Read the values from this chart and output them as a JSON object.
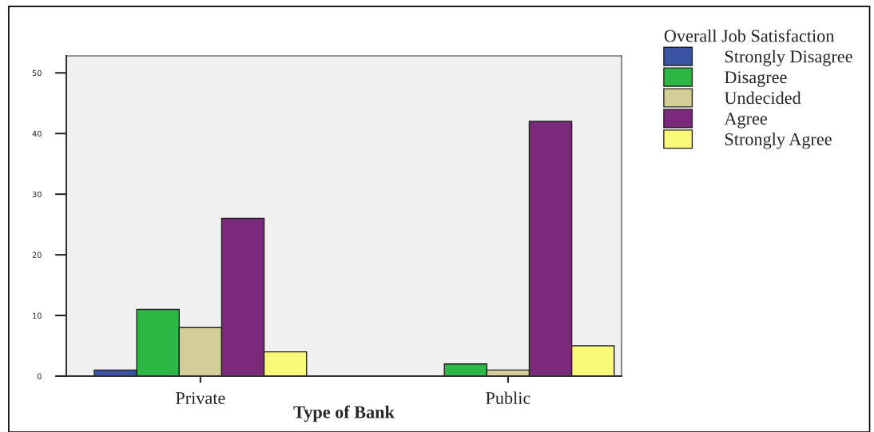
{
  "chart_data": {
    "type": "bar",
    "categories": [
      "Private",
      "Public"
    ],
    "xlabel": "Type of Bank",
    "legend_title": "Overall Job Satisfaction",
    "legend": "top right",
    "series": [
      {
        "name": "Strongly Disagree",
        "color": "#3a53a4",
        "values": [
          1,
          null
        ]
      },
      {
        "name": "Disagree",
        "color": "#2db744",
        "values": [
          11,
          2
        ]
      },
      {
        "name": "Undecided",
        "color": "#d3ce97",
        "values": [
          8,
          1
        ]
      },
      {
        "name": "Agree",
        "color": "#7b2a7b",
        "values": [
          26,
          42
        ]
      },
      {
        "name": "Strongly Agree",
        "color": "#fbf97a",
        "values": [
          4,
          5
        ]
      }
    ],
    "ylim": [
      0,
      52.8
    ],
    "yticks": [
      0,
      10,
      20,
      30,
      40,
      50
    ],
    "grid": false
  }
}
